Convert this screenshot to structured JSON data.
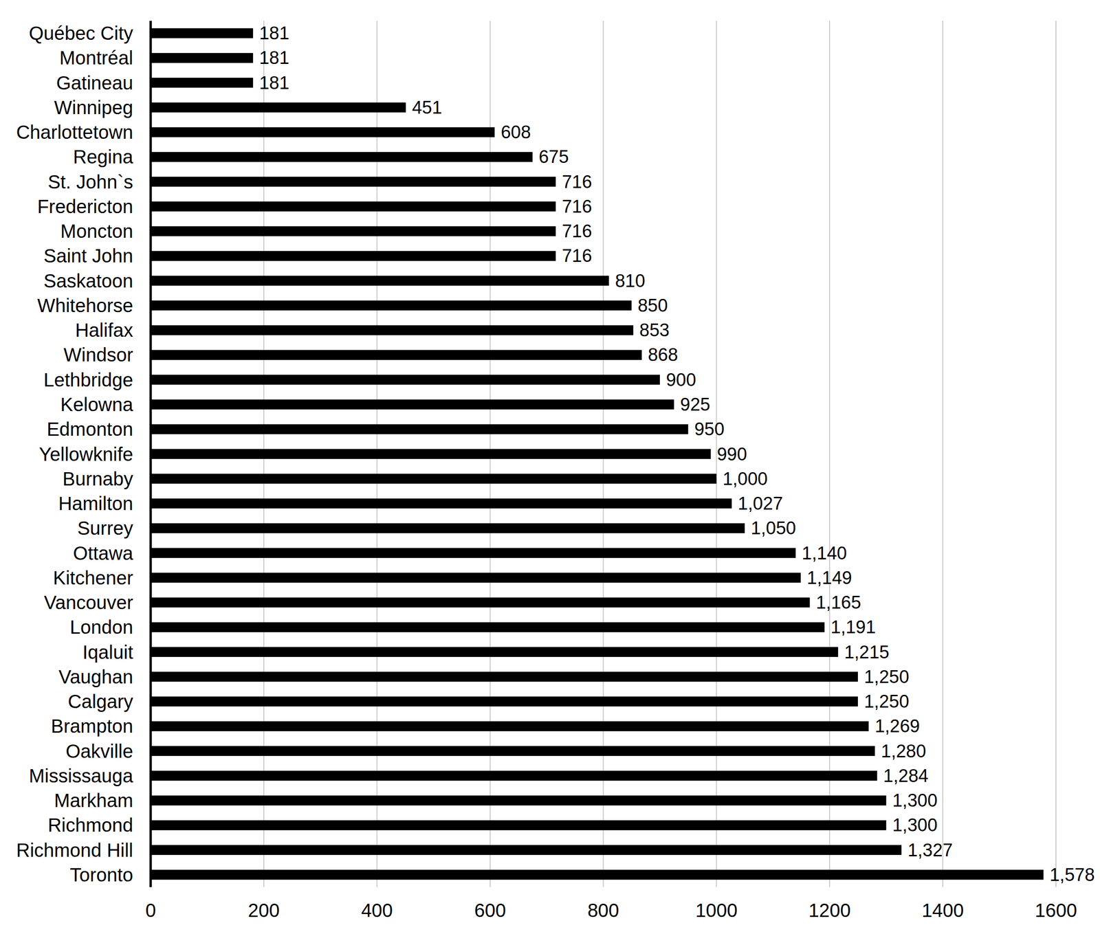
{
  "chart_data": {
    "type": "bar",
    "orientation": "horizontal",
    "categories": [
      "Québec City",
      "Montréal",
      "Gatineau",
      "Winnipeg",
      "Charlottetown",
      "Regina",
      "St. John`s",
      "Fredericton",
      "Moncton",
      "Saint John",
      "Saskatoon",
      "Whitehorse",
      "Halifax",
      "Windsor",
      "Lethbridge",
      "Kelowna",
      "Edmonton",
      "Yellowknife",
      "Burnaby",
      "Hamilton",
      "Surrey",
      "Ottawa",
      "Kitchener",
      "Vancouver",
      "London",
      "Iqaluit",
      "Vaughan",
      "Calgary",
      "Brampton",
      "Oakville",
      "Mississauga",
      "Markham",
      "Richmond",
      "Richmond Hill",
      "Toronto"
    ],
    "values": [
      181,
      181,
      181,
      451,
      608,
      675,
      716,
      716,
      716,
      716,
      810,
      850,
      853,
      868,
      900,
      925,
      950,
      990,
      1000,
      1027,
      1050,
      1140,
      1149,
      1165,
      1191,
      1215,
      1250,
      1250,
      1269,
      1280,
      1284,
      1300,
      1300,
      1327,
      1578
    ],
    "value_labels": [
      "181",
      "181",
      "181",
      "451",
      "608",
      "675",
      "716",
      "716",
      "716",
      "716",
      "810",
      "850",
      "853",
      "868",
      "900",
      "925",
      "950",
      "990",
      "1,000",
      "1,027",
      "1,050",
      "1,140",
      "1,149",
      "1,165",
      "1,191",
      "1,215",
      "1,250",
      "1,250",
      "1,269",
      "1,280",
      "1,284",
      "1,300",
      "1,300",
      "1,327",
      "1,578"
    ],
    "color": "#000000",
    "xlim": [
      0,
      1600
    ],
    "xticks": [
      0,
      200,
      400,
      600,
      800,
      1000,
      1200,
      1400,
      1600
    ],
    "grid": true,
    "data_labels": true
  }
}
